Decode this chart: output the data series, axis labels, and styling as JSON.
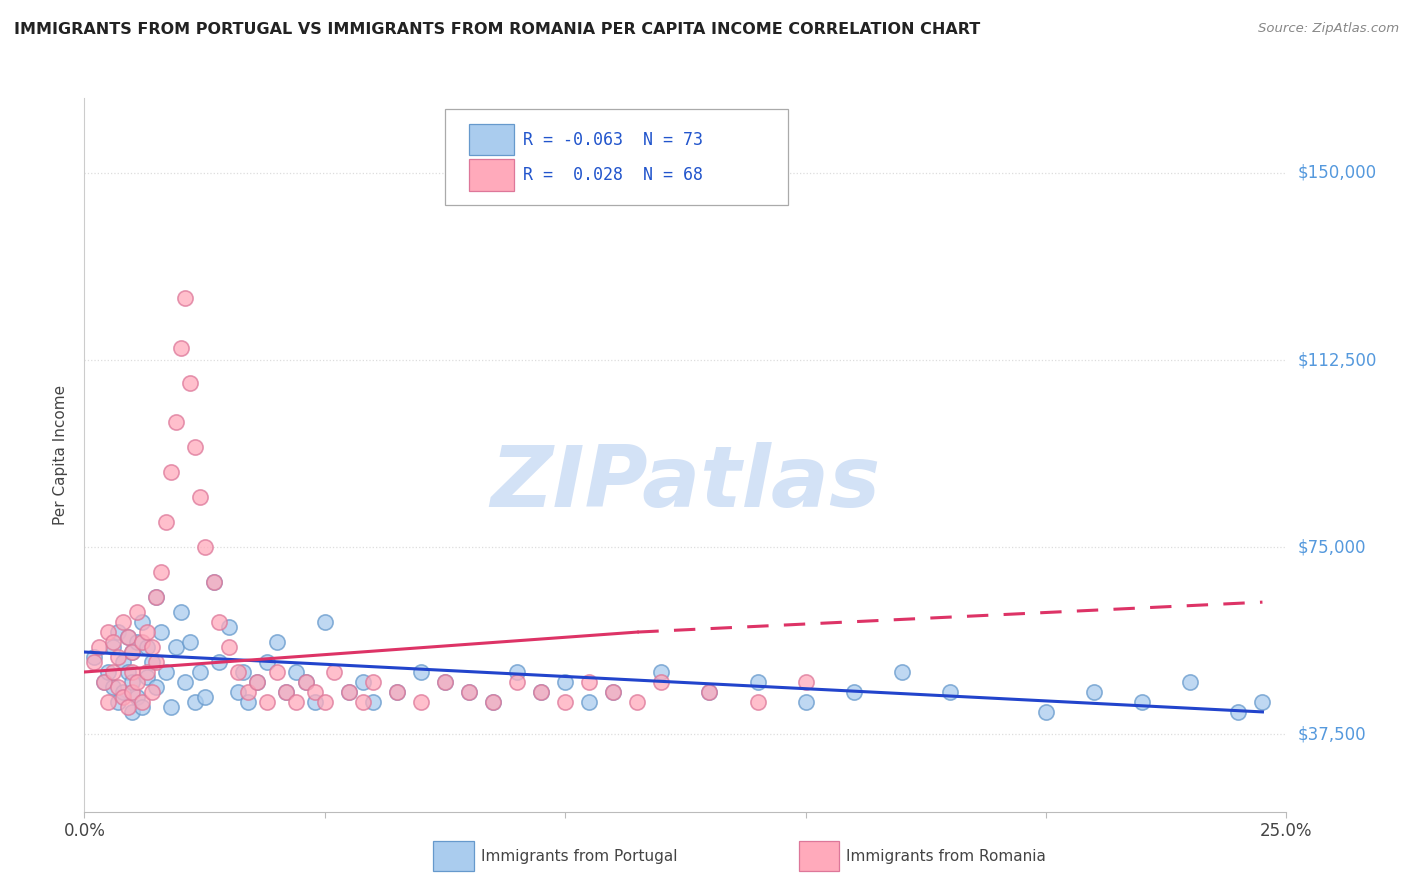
{
  "title": "IMMIGRANTS FROM PORTUGAL VS IMMIGRANTS FROM ROMANIA PER CAPITA INCOME CORRELATION CHART",
  "source": "Source: ZipAtlas.com",
  "ylabel": "Per Capita Income",
  "xlim": [
    0.0,
    0.25
  ],
  "ylim_min": 22000,
  "ylim_max": 165000,
  "yticks": [
    37500,
    75000,
    112500,
    150000
  ],
  "ytick_labels": [
    "$37,500",
    "$75,000",
    "$112,500",
    "$150,000"
  ],
  "xtick_vals": [
    0.0,
    0.05,
    0.1,
    0.15,
    0.2,
    0.25
  ],
  "xtick_labels": [
    "0.0%",
    "",
    "",
    "",
    "",
    "25.0%"
  ],
  "portugal_color": "#aaccee",
  "portugal_edge": "#6699cc",
  "romania_color": "#ffaabb",
  "romania_edge": "#dd7799",
  "trend_portugal_color": "#2244cc",
  "trend_romania_color": "#dd3366",
  "R_portugal": -0.063,
  "N_portugal": 73,
  "R_romania": 0.028,
  "N_romania": 68,
  "watermark": "ZIPatlas",
  "watermark_color": "#ccddf5",
  "legend_portugal": "Immigrants from Portugal",
  "legend_romania": "Immigrants from Romania",
  "axis_color": "#5599dd",
  "title_color": "#222222",
  "tick_color": "#444444",
  "grid_color": "#dddddd",
  "bg_color": "#ffffff",
  "portugal_x": [
    0.002,
    0.004,
    0.005,
    0.006,
    0.006,
    0.007,
    0.007,
    0.008,
    0.008,
    0.009,
    0.009,
    0.01,
    0.01,
    0.01,
    0.011,
    0.011,
    0.012,
    0.012,
    0.013,
    0.013,
    0.014,
    0.015,
    0.015,
    0.016,
    0.017,
    0.018,
    0.019,
    0.02,
    0.021,
    0.022,
    0.023,
    0.024,
    0.025,
    0.027,
    0.028,
    0.03,
    0.032,
    0.033,
    0.034,
    0.036,
    0.038,
    0.04,
    0.042,
    0.044,
    0.046,
    0.048,
    0.05,
    0.055,
    0.058,
    0.06,
    0.065,
    0.07,
    0.075,
    0.08,
    0.085,
    0.09,
    0.095,
    0.1,
    0.105,
    0.11,
    0.12,
    0.13,
    0.14,
    0.15,
    0.16,
    0.17,
    0.18,
    0.2,
    0.21,
    0.22,
    0.23,
    0.24,
    0.245
  ],
  "portugal_y": [
    53000,
    48000,
    50000,
    55000,
    47000,
    58000,
    44000,
    52000,
    46000,
    57000,
    50000,
    54000,
    48000,
    42000,
    56000,
    45000,
    60000,
    43000,
    55000,
    49000,
    52000,
    65000,
    47000,
    58000,
    50000,
    43000,
    55000,
    62000,
    48000,
    56000,
    44000,
    50000,
    45000,
    68000,
    52000,
    59000,
    46000,
    50000,
    44000,
    48000,
    52000,
    56000,
    46000,
    50000,
    48000,
    44000,
    60000,
    46000,
    48000,
    44000,
    46000,
    50000,
    48000,
    46000,
    44000,
    50000,
    46000,
    48000,
    44000,
    46000,
    50000,
    46000,
    48000,
    44000,
    46000,
    50000,
    46000,
    42000,
    46000,
    44000,
    48000,
    42000,
    44000
  ],
  "romania_x": [
    0.002,
    0.003,
    0.004,
    0.005,
    0.005,
    0.006,
    0.006,
    0.007,
    0.007,
    0.008,
    0.008,
    0.009,
    0.009,
    0.01,
    0.01,
    0.01,
    0.011,
    0.011,
    0.012,
    0.012,
    0.013,
    0.013,
    0.014,
    0.014,
    0.015,
    0.015,
    0.016,
    0.017,
    0.018,
    0.019,
    0.02,
    0.021,
    0.022,
    0.023,
    0.024,
    0.025,
    0.027,
    0.028,
    0.03,
    0.032,
    0.034,
    0.036,
    0.038,
    0.04,
    0.042,
    0.044,
    0.046,
    0.048,
    0.05,
    0.052,
    0.055,
    0.058,
    0.06,
    0.065,
    0.07,
    0.075,
    0.08,
    0.085,
    0.09,
    0.095,
    0.1,
    0.105,
    0.11,
    0.115,
    0.12,
    0.13,
    0.14,
    0.15
  ],
  "romania_y": [
    52000,
    55000,
    48000,
    58000,
    44000,
    56000,
    50000,
    53000,
    47000,
    60000,
    45000,
    57000,
    43000,
    54000,
    50000,
    46000,
    62000,
    48000,
    56000,
    44000,
    58000,
    50000,
    55000,
    46000,
    65000,
    52000,
    70000,
    80000,
    90000,
    100000,
    115000,
    125000,
    108000,
    95000,
    85000,
    75000,
    68000,
    60000,
    55000,
    50000,
    46000,
    48000,
    44000,
    50000,
    46000,
    44000,
    48000,
    46000,
    44000,
    50000,
    46000,
    44000,
    48000,
    46000,
    44000,
    48000,
    46000,
    44000,
    48000,
    46000,
    44000,
    48000,
    46000,
    44000,
    48000,
    46000,
    44000,
    48000
  ],
  "trend_port_x0": 0.0,
  "trend_port_x1": 0.245,
  "trend_port_y0": 54000,
  "trend_port_y1": 42000,
  "trend_rom_solid_x0": 0.0,
  "trend_rom_solid_x1": 0.115,
  "trend_rom_solid_y0": 50000,
  "trend_rom_solid_y1": 58000,
  "trend_rom_dash_x0": 0.115,
  "trend_rom_dash_x1": 0.245,
  "trend_rom_dash_y0": 58000,
  "trend_rom_dash_y1": 64000
}
